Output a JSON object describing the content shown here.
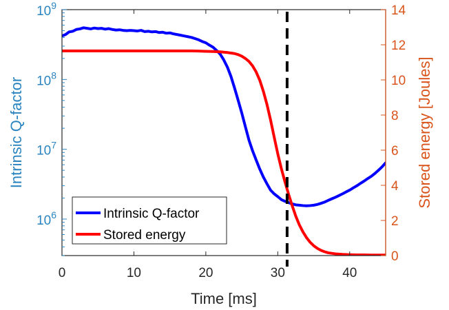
{
  "chart_data": {
    "type": "line",
    "title": "",
    "xlabel": "Time [ms]",
    "ylabel_left": "Intrinsic Q-factor",
    "ylabel_right": "Stored energy [Joules]",
    "xlim": [
      0,
      45
    ],
    "ylim_left": [
      300000,
      1000000000
    ],
    "ylim_right": [
      0,
      14
    ],
    "left_scale": "log",
    "right_scale": "linear",
    "grid": false,
    "legend_position": "bottom-left",
    "x_ticks": [
      "0",
      "10",
      "20",
      "30",
      "40"
    ],
    "x_tick_values": [
      0,
      10,
      20,
      30,
      40
    ],
    "left_ticks": [
      {
        "value": 1000000,
        "base": "10",
        "exp": "6"
      },
      {
        "value": 10000000,
        "base": "10",
        "exp": "7"
      },
      {
        "value": 100000000,
        "base": "10",
        "exp": "8"
      },
      {
        "value": 1000000000,
        "base": "10",
        "exp": "9"
      }
    ],
    "right_ticks": [
      "0",
      "2",
      "4",
      "6",
      "8",
      "10",
      "12",
      "14"
    ],
    "right_tick_values": [
      0,
      2,
      4,
      6,
      8,
      10,
      12,
      14
    ],
    "vline": {
      "x": 31.3,
      "style": "dashed",
      "color": "#000000"
    },
    "colors": {
      "left_axis": "#2a84c0",
      "right_axis": "#d9541b",
      "axes_box": "#262626"
    },
    "series": [
      {
        "name": "Intrinsic Q-factor",
        "axis": "left",
        "color": "#0000ff",
        "x": [
          0,
          0.5,
          1,
          1.5,
          2,
          2.5,
          3,
          3.5,
          4,
          4.5,
          5,
          5.5,
          6,
          6.5,
          7,
          7.5,
          8,
          8.5,
          9,
          9.5,
          10,
          10.5,
          11,
          11.5,
          12,
          12.5,
          13,
          13.5,
          14,
          14.5,
          15,
          15.5,
          16,
          16.5,
          17,
          17.5,
          18,
          18.5,
          19,
          19.5,
          20,
          20.5,
          21,
          21.5,
          22,
          22.5,
          23,
          23.5,
          24,
          24.5,
          25,
          25.5,
          26,
          26.5,
          27,
          27.5,
          28,
          28.5,
          29,
          29.5,
          30,
          30.5,
          31,
          31.5,
          32,
          32.5,
          33,
          33.5,
          34,
          34.5,
          35,
          35.5,
          36,
          36.5,
          37,
          37.5,
          38,
          38.5,
          39,
          39.5,
          40,
          40.5,
          41,
          41.5,
          42,
          42.5,
          43,
          43.5,
          44,
          44.5,
          45
        ],
        "values": [
          420000000,
          440000000,
          480000000,
          490000000,
          520000000,
          530000000,
          550000000,
          540000000,
          530000000,
          545000000,
          535000000,
          540000000,
          525000000,
          535000000,
          520000000,
          510000000,
          515000000,
          505000000,
          500000000,
          505000000,
          500000000,
          495000000,
          505000000,
          485000000,
          490000000,
          480000000,
          485000000,
          470000000,
          475000000,
          460000000,
          465000000,
          450000000,
          440000000,
          430000000,
          420000000,
          410000000,
          400000000,
          385000000,
          370000000,
          350000000,
          335000000,
          310000000,
          290000000,
          260000000,
          230000000,
          190000000,
          150000000,
          110000000,
          75000000,
          50000000,
          33000000,
          21000000,
          13500000,
          9500000,
          7000000,
          5200000,
          4000000,
          3200000,
          2600000,
          2300000,
          2100000,
          1900000,
          1800000,
          1720000,
          1650000,
          1600000,
          1580000,
          1560000,
          1550000,
          1560000,
          1580000,
          1620000,
          1680000,
          1750000,
          1850000,
          1950000,
          2050000,
          2170000,
          2300000,
          2450000,
          2600000,
          2800000,
          3000000,
          3250000,
          3500000,
          3800000,
          4100000,
          4500000,
          5000000,
          5600000,
          6400000
        ]
      },
      {
        "name": "Stored energy",
        "axis": "right",
        "color": "#ff0000",
        "x": [
          0,
          2,
          4,
          6,
          8,
          10,
          12,
          14,
          16,
          18,
          19,
          20,
          21,
          22,
          23,
          24,
          24.5,
          25,
          25.5,
          26,
          26.5,
          27,
          27.5,
          28,
          28.5,
          29,
          29.5,
          30,
          30.5,
          31,
          31.5,
          32,
          32.5,
          33,
          33.5,
          34,
          34.5,
          35,
          35.5,
          36,
          36.5,
          37,
          38,
          39,
          40,
          41,
          42,
          43,
          44,
          45
        ],
        "values": [
          11.65,
          11.65,
          11.65,
          11.65,
          11.65,
          11.65,
          11.65,
          11.65,
          11.65,
          11.65,
          11.64,
          11.63,
          11.62,
          11.6,
          11.56,
          11.5,
          11.44,
          11.35,
          11.22,
          11.05,
          10.8,
          10.45,
          9.98,
          9.35,
          8.6,
          7.72,
          6.75,
          5.8,
          4.95,
          4.2,
          3.5,
          2.85,
          2.25,
          1.75,
          1.35,
          1.02,
          0.76,
          0.56,
          0.41,
          0.3,
          0.22,
          0.16,
          0.1,
          0.07,
          0.05,
          0.04,
          0.04,
          0.03,
          0.03,
          0.03
        ]
      }
    ]
  }
}
